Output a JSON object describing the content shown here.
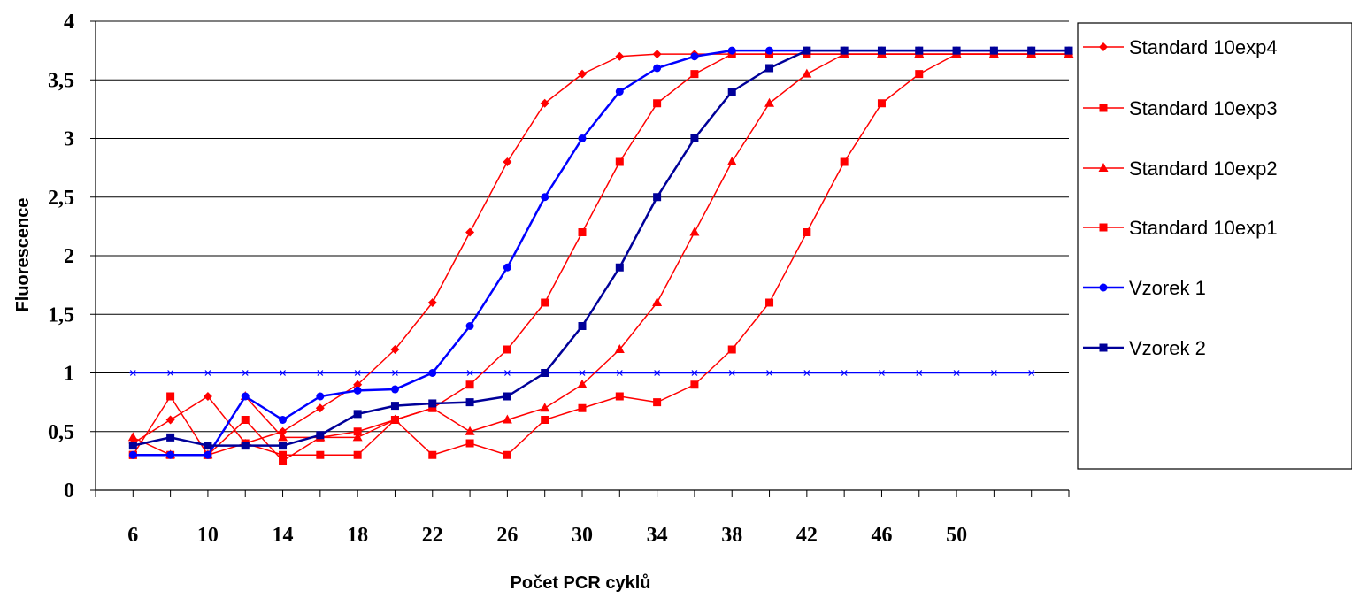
{
  "chart_data": {
    "type": "line",
    "xlabel": "Počet PCR cyklů",
    "ylabel": "Fluorescence",
    "ylim": [
      0,
      4
    ],
    "yticks": [
      0,
      0.5,
      1,
      1.5,
      2,
      2.5,
      3,
      3.5,
      4
    ],
    "ytick_labels": [
      "0",
      "0,5",
      "1",
      "1,5",
      "2",
      "2,5",
      "3",
      "3,5",
      "4"
    ],
    "xlim": [
      4,
      56
    ],
    "xtick_labels": [
      {
        "x": 6,
        "label": "6"
      },
      {
        "x": 10,
        "label": "10"
      },
      {
        "x": 14,
        "label": "14"
      },
      {
        "x": 18,
        "label": "18"
      },
      {
        "x": 22,
        "label": "22"
      },
      {
        "x": 26,
        "label": "26"
      },
      {
        "x": 30,
        "label": "30"
      },
      {
        "x": 34,
        "label": "34"
      },
      {
        "x": 38,
        "label": "38"
      },
      {
        "x": 42,
        "label": "42"
      },
      {
        "x": 46,
        "label": "46"
      },
      {
        "x": 50,
        "label": "50"
      }
    ],
    "grid": "horizontal",
    "legend_position": "right",
    "x": [
      6,
      8,
      10,
      12,
      14,
      16,
      18,
      20,
      22,
      24,
      26,
      28,
      30,
      32,
      34,
      36,
      38,
      40,
      42,
      44,
      46,
      48,
      50,
      52,
      54,
      56
    ],
    "series": [
      {
        "name": "Standard 10exp4",
        "color": "#ff0000",
        "marker": "diamond",
        "stroke_width": 1.5,
        "values": [
          0.4,
          0.6,
          0.8,
          0.4,
          0.5,
          0.7,
          0.9,
          1.2,
          1.6,
          2.2,
          2.8,
          3.3,
          3.55,
          3.7,
          3.72,
          3.72,
          3.72,
          3.72,
          3.72,
          3.72,
          3.72,
          3.72,
          3.72,
          3.72,
          3.72,
          3.72
        ]
      },
      {
        "name": "Standard 10exp3",
        "color": "#ff0000",
        "marker": "square",
        "stroke_width": 1.5,
        "values": [
          0.3,
          0.8,
          0.3,
          0.6,
          0.25,
          0.45,
          0.5,
          0.6,
          0.7,
          0.9,
          1.2,
          1.6,
          2.2,
          2.8,
          3.3,
          3.55,
          3.72,
          3.72,
          3.72,
          3.72,
          3.72,
          3.72,
          3.72,
          3.72,
          3.72,
          3.72
        ]
      },
      {
        "name": "Standard 10exp2",
        "color": "#ff0000",
        "marker": "triangle",
        "stroke_width": 1.5,
        "values": [
          0.45,
          0.3,
          0.3,
          0.8,
          0.45,
          0.45,
          0.45,
          0.6,
          0.7,
          0.5,
          0.6,
          0.7,
          0.9,
          1.2,
          1.6,
          2.2,
          2.8,
          3.3,
          3.55,
          3.72,
          3.72,
          3.72,
          3.72,
          3.72,
          3.72,
          3.72
        ]
      },
      {
        "name": "Standard 10exp1",
        "color": "#ff0000",
        "marker": "square",
        "stroke_width": 1.5,
        "values": [
          0.3,
          0.3,
          0.3,
          0.4,
          0.3,
          0.3,
          0.3,
          0.6,
          0.3,
          0.4,
          0.3,
          0.6,
          0.7,
          0.8,
          0.75,
          0.9,
          1.2,
          1.6,
          2.2,
          2.8,
          3.3,
          3.55,
          3.72,
          3.72,
          3.72,
          3.72
        ]
      },
      {
        "name": "Vzorek 1",
        "color": "#0000ff",
        "marker": "circle",
        "stroke_width": 2.5,
        "values": [
          0.3,
          0.3,
          0.3,
          0.8,
          0.6,
          0.8,
          0.85,
          0.86,
          1.0,
          1.4,
          1.9,
          2.5,
          3.0,
          3.4,
          3.6,
          3.7,
          3.75,
          3.75,
          3.75,
          3.75,
          3.75,
          3.75,
          3.75,
          3.75,
          3.75,
          3.75
        ]
      },
      {
        "name": "Vzorek 2",
        "color": "#000099",
        "marker": "square",
        "stroke_width": 2.5,
        "values": [
          0.38,
          0.45,
          0.38,
          0.38,
          0.38,
          0.47,
          0.65,
          0.72,
          0.74,
          0.75,
          0.8,
          1.0,
          1.4,
          1.9,
          2.5,
          3.0,
          3.4,
          3.6,
          3.75,
          3.75,
          3.75,
          3.75,
          3.75,
          3.75,
          3.75,
          3.75
        ]
      }
    ],
    "threshold": {
      "y": 1.0,
      "color": "#0000ff",
      "marker": "asterisk",
      "x": [
        6,
        8,
        10,
        12,
        14,
        16,
        18,
        20,
        22,
        24,
        26,
        28,
        30,
        32,
        34,
        36,
        38,
        40,
        42,
        44,
        46,
        48,
        50,
        52,
        54
      ]
    }
  }
}
